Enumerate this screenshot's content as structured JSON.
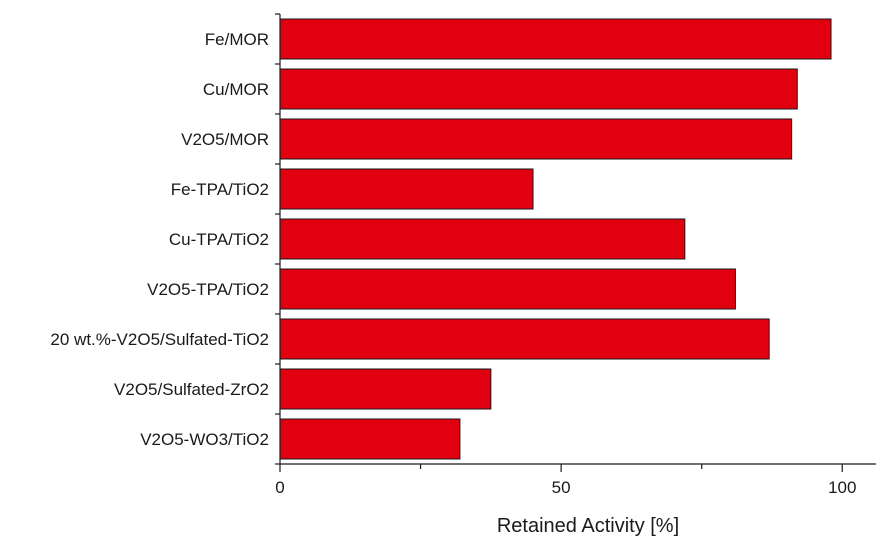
{
  "chart_data": {
    "type": "bar",
    "orientation": "horizontal",
    "categories": [
      "Fe/MOR",
      "Cu/MOR",
      "V2O5/MOR",
      "Fe-TPA/TiO2",
      "Cu-TPA/TiO2",
      "V2O5-TPA/TiO2",
      "20 wt.%-V2O5/Sulfated-TiO2",
      "V2O5/Sulfated-ZrO2",
      "V2O5-WO3/TiO2"
    ],
    "values": [
      98,
      92,
      91,
      45,
      72,
      81,
      87,
      37.5,
      32
    ],
    "title": "",
    "xlabel": "Retained Activity [%]",
    "ylabel": "",
    "xlim": [
      0,
      106
    ],
    "xticks": [
      0,
      50,
      100
    ],
    "xtick_labels": [
      "0",
      "50",
      "100"
    ],
    "grid": false,
    "bar_color": "#e00010",
    "bar_edge_color": "#1a1a1a"
  }
}
